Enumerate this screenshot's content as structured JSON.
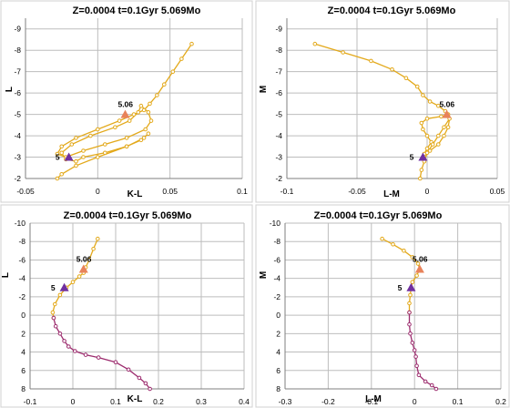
{
  "chart_data": [
    {
      "type": "line",
      "title": "Z=0.0004  t=0.1Gyr  5.069Mo",
      "xlabel": "K-L",
      "ylabel": "L",
      "xlim": [
        -0.05,
        0.1
      ],
      "ylim": [
        -2,
        -9.5
      ],
      "y_inverted": true,
      "grid": true,
      "x_ticks": [
        -0.05,
        0,
        0.05,
        0.1
      ],
      "x_tick_labels": [
        "-0.05",
        "0",
        "0.05",
        "0.1"
      ],
      "y_ticks": [
        -2,
        -3,
        -4,
        -5,
        -6,
        -7,
        -8,
        -9
      ],
      "y_tick_labels": [
        "-2",
        "-3",
        "-4",
        "-5",
        "-6",
        "-7",
        "-8",
        "-9"
      ],
      "series": [
        {
          "color": "#e3a91b",
          "points": [
            [
              0.065,
              -8.3
            ],
            [
              0.058,
              -7.6
            ],
            [
              0.052,
              -7.0
            ],
            [
              0.046,
              -6.4
            ],
            [
              0.041,
              -5.9
            ],
            [
              0.036,
              -5.5
            ],
            [
              0.032,
              -5.2
            ],
            [
              0.025,
              -5.0
            ],
            [
              0.015,
              -4.7
            ],
            [
              0.0,
              -4.3
            ],
            [
              -0.015,
              -3.9
            ],
            [
              -0.025,
              -3.5
            ],
            [
              -0.028,
              -3.15
            ],
            [
              -0.022,
              -3.0
            ],
            [
              -0.01,
              -3.3
            ],
            [
              0.005,
              -3.6
            ],
            [
              0.02,
              -3.9
            ],
            [
              0.033,
              -4.3
            ],
            [
              0.037,
              -4.7
            ],
            [
              0.035,
              -5.1
            ],
            [
              0.03,
              -5.4
            ],
            [
              0.028,
              -5.1
            ],
            [
              0.022,
              -4.7
            ],
            [
              0.012,
              -4.4
            ],
            [
              -0.005,
              -4.0
            ],
            [
              -0.018,
              -3.6
            ],
            [
              -0.025,
              -3.2
            ],
            [
              -0.022,
              -2.9
            ],
            [
              -0.015,
              -2.8
            ],
            [
              -0.01,
              -3.0
            ],
            [
              0.005,
              -3.2
            ],
            [
              0.02,
              -3.5
            ],
            [
              0.03,
              -3.8
            ],
            [
              0.035,
              -4.1
            ],
            [
              0.032,
              -3.9
            ],
            [
              0.02,
              -3.5
            ],
            [
              0.0,
              -3.0
            ],
            [
              -0.015,
              -2.6
            ],
            [
              -0.025,
              -2.2
            ],
            [
              -0.028,
              -2.0
            ]
          ]
        }
      ],
      "annotations": [
        {
          "text": "5.06",
          "x": 0.019,
          "y": -5.0,
          "marker": "triangle",
          "marker_color": "#e8825a"
        },
        {
          "text": "5",
          "x": -0.02,
          "y": -3.0,
          "marker": "triangle",
          "marker_color": "#7030a0"
        }
      ]
    },
    {
      "type": "line",
      "title": "Z=0.0004  t=0.1Gyr  5.069Mo",
      "xlabel": "L-M",
      "ylabel": "M",
      "xlim": [
        -0.1,
        0.05
      ],
      "ylim": [
        -2,
        -9.5
      ],
      "y_inverted": true,
      "grid": true,
      "x_ticks": [
        -0.1,
        -0.05,
        0,
        0.05
      ],
      "x_tick_labels": [
        "-0.1",
        "-0.05",
        "0",
        "0.05"
      ],
      "y_ticks": [
        -2,
        -3,
        -4,
        -5,
        -6,
        -7,
        -8,
        -9
      ],
      "y_tick_labels": [
        "-2",
        "-3",
        "-4",
        "-5",
        "-6",
        "-7",
        "-8",
        "-9"
      ],
      "series": [
        {
          "color": "#e3a91b",
          "points": [
            [
              -0.08,
              -8.3
            ],
            [
              -0.06,
              -7.9
            ],
            [
              -0.04,
              -7.5
            ],
            [
              -0.025,
              -7.1
            ],
            [
              -0.015,
              -6.7
            ],
            [
              -0.007,
              -6.3
            ],
            [
              -0.003,
              -5.9
            ],
            [
              0.002,
              -5.6
            ],
            [
              0.008,
              -5.4
            ],
            [
              0.013,
              -5.15
            ],
            [
              0.015,
              -5.0
            ],
            [
              0.01,
              -4.9
            ],
            [
              0.0,
              -4.8
            ],
            [
              -0.004,
              -4.6
            ],
            [
              -0.003,
              -4.3
            ],
            [
              0.0,
              -4.0
            ],
            [
              0.003,
              -3.7
            ],
            [
              0.0,
              -3.4
            ],
            [
              -0.002,
              -3.15
            ],
            [
              0.002,
              -3.3
            ],
            [
              0.008,
              -3.6
            ],
            [
              0.012,
              -4.0
            ],
            [
              0.015,
              -4.4
            ],
            [
              0.016,
              -4.8
            ],
            [
              0.012,
              -4.4
            ],
            [
              0.008,
              -4.0
            ],
            [
              0.004,
              -3.6
            ],
            [
              0.0,
              -3.2
            ],
            [
              -0.002,
              -2.8
            ],
            [
              -0.004,
              -2.4
            ],
            [
              -0.005,
              -2.0
            ]
          ]
        }
      ],
      "annotations": [
        {
          "text": "5.06",
          "x": 0.014,
          "y": -5.0,
          "marker": "triangle",
          "marker_color": "#e8825a"
        },
        {
          "text": "5",
          "x": -0.003,
          "y": -3.0,
          "marker": "triangle",
          "marker_color": "#7030a0"
        }
      ]
    },
    {
      "type": "line",
      "title": "Z=0.0004  t=0.1Gyr  5.069Mo",
      "xlabel": "K-L",
      "ylabel": "L",
      "xlim": [
        -0.1,
        0.4
      ],
      "ylim": [
        8,
        -10
      ],
      "y_inverted": true,
      "grid": true,
      "x_ticks": [
        -0.1,
        0,
        0.1,
        0.2,
        0.3,
        0.4
      ],
      "x_tick_labels": [
        "-0.1",
        "0",
        "0.1",
        "0.2",
        "0.3",
        "0.4"
      ],
      "y_ticks": [
        -10,
        -8,
        -6,
        -4,
        -2,
        0,
        2,
        4,
        6,
        8
      ],
      "y_tick_labels": [
        "-10",
        "-8",
        "-6",
        "-4",
        "-2",
        "0",
        "2",
        "4",
        "6",
        "8"
      ],
      "series": [
        {
          "color": "#e3a91b",
          "points": [
            [
              0.058,
              -8.3
            ],
            [
              0.048,
              -7.2
            ],
            [
              0.038,
              -6.0
            ],
            [
              0.03,
              -5.2
            ],
            [
              0.025,
              -4.6
            ],
            [
              0.015,
              -4.2
            ],
            [
              0.0,
              -3.6
            ],
            [
              -0.015,
              -3.0
            ],
            [
              -0.03,
              -2.2
            ],
            [
              -0.042,
              -1.2
            ],
            [
              -0.047,
              -0.3
            ],
            [
              -0.045,
              0.3
            ]
          ]
        },
        {
          "color": "#9c2c6e",
          "points": [
            [
              -0.045,
              0.3
            ],
            [
              -0.04,
              1.2
            ],
            [
              -0.03,
              2.0
            ],
            [
              -0.02,
              2.8
            ],
            [
              -0.01,
              3.4
            ],
            [
              0.005,
              3.9
            ],
            [
              0.03,
              4.3
            ],
            [
              0.06,
              4.6
            ],
            [
              0.1,
              5.1
            ],
            [
              0.13,
              5.9
            ],
            [
              0.155,
              6.8
            ],
            [
              0.17,
              7.4
            ],
            [
              0.18,
              8.0
            ]
          ]
        }
      ],
      "annotations": [
        {
          "text": "5.06",
          "x": 0.025,
          "y": -5.0,
          "marker": "triangle",
          "marker_color": "#e8825a"
        },
        {
          "text": "5",
          "x": -0.02,
          "y": -3.0,
          "marker": "triangle",
          "marker_color": "#7030a0"
        }
      ]
    },
    {
      "type": "line",
      "title": "Z=0.0004  t=0.1Gyr  5.069Mo",
      "xlabel": "L-M",
      "ylabel": "M",
      "xlim": [
        -0.3,
        0.2
      ],
      "ylim": [
        8,
        -10
      ],
      "y_inverted": true,
      "grid": true,
      "x_ticks": [
        -0.3,
        -0.2,
        -0.1,
        0,
        0.1,
        0.2
      ],
      "x_tick_labels": [
        "-0.3",
        "-0.2",
        "-0.1",
        "0",
        "0.1",
        "0.2"
      ],
      "y_ticks": [
        -10,
        -8,
        -6,
        -4,
        -2,
        0,
        2,
        4,
        6,
        8
      ],
      "y_tick_labels": [
        "-10",
        "-8",
        "-6",
        "-4",
        "-2",
        "0",
        "2",
        "4",
        "6",
        "8"
      ],
      "series": [
        {
          "color": "#e3a91b",
          "points": [
            [
              -0.075,
              -8.3
            ],
            [
              -0.05,
              -7.7
            ],
            [
              -0.025,
              -7.0
            ],
            [
              -0.005,
              -6.3
            ],
            [
              0.008,
              -5.6
            ],
            [
              0.012,
              -5.0
            ],
            [
              0.005,
              -4.3
            ],
            [
              -0.005,
              -3.6
            ],
            [
              -0.008,
              -3.0
            ],
            [
              -0.01,
              -2.2
            ],
            [
              -0.012,
              -1.3
            ],
            [
              -0.012,
              -0.3
            ]
          ]
        },
        {
          "color": "#9c2c6e",
          "points": [
            [
              -0.012,
              -0.3
            ],
            [
              -0.012,
              1.0
            ],
            [
              -0.01,
              2.0
            ],
            [
              -0.005,
              3.0
            ],
            [
              0.0,
              3.8
            ],
            [
              0.003,
              4.5
            ],
            [
              0.005,
              5.5
            ],
            [
              0.01,
              6.5
            ],
            [
              0.025,
              7.2
            ],
            [
              0.04,
              7.6
            ],
            [
              0.05,
              8.0
            ]
          ]
        }
      ],
      "annotations": [
        {
          "text": "5.06",
          "x": 0.012,
          "y": -5.0,
          "marker": "triangle",
          "marker_color": "#e8825a"
        },
        {
          "text": "5",
          "x": -0.008,
          "y": -3.0,
          "marker": "triangle",
          "marker_color": "#7030a0"
        }
      ]
    }
  ]
}
